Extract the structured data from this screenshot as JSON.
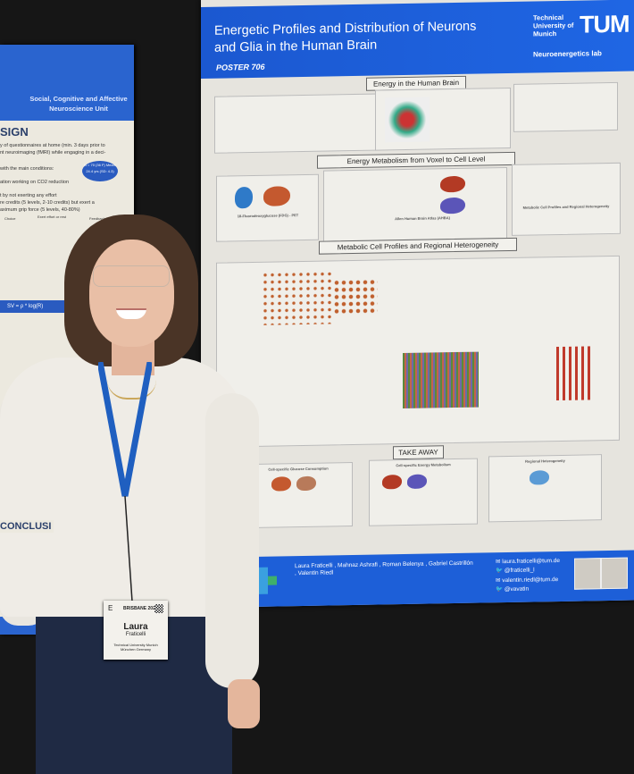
{
  "left_poster": {
    "unit": "Social, Cognitive and Affective Neuroscience Unit",
    "section": "SIGN",
    "lines": [
      "y of questionnaires at home (min. 3 days prior to",
      "nt neuroimaging (fMRI) while engaging in a deci-",
      "with the main conditions:",
      "ation working on CO2 reduction",
      "t by not exerting any effort",
      "re credits (5 levels, 2-10 credits) but exert a",
      "aximum grip force (5 levels, 40-80%)"
    ],
    "columns": [
      "Choice",
      "Exert effort or rest",
      "Feedback"
    ],
    "badge": "N = 70 (36 F) Mean: 24.4 yrs (SD: 4.3)",
    "formula": "SV = ρ * log(R)",
    "conclusion": "CONCLUSI"
  },
  "poster": {
    "title": "Energetic Profiles and Distribution of Neurons and Glia in the Human Brain",
    "number": "POSTER 706",
    "institution": "Technical University of Munich",
    "logo": "TUM",
    "lab": "Neuroenergetics lab",
    "sections": [
      "Energy in the Human Brain",
      "Energy Metabolism from Voxel to Cell Level",
      "Metabolic Cell Profiles and Regional Heterogeneity",
      "TAKE AWAY"
    ],
    "panels": {
      "fdg": "18-Fluorodeoxyglucose (FDG) - PET",
      "ahba": "Allen Human Brain Atlas (AHBA)",
      "regional": "Metabolic Cell Profiles and Regional Heterogeneity"
    },
    "takeaways": [
      {
        "title": "Cell-specific Glucose Consumption"
      },
      {
        "title": "Cell-specific Energy Metabolism"
      },
      {
        "title": "Regional Heterogeneity"
      }
    ],
    "authors": "Laura Fraticelli , Mahnaz Ashrafi , Roman Belenya , Gabriel Castrillón , Valentin Riedl",
    "contacts": [
      {
        "icon": "mail-icon",
        "text": "laura.fraticelli@tum.de"
      },
      {
        "icon": "twitter-icon",
        "text": "@fraticelli_l"
      },
      {
        "icon": "mail-icon",
        "text": "valentin.riedl@tum.de"
      },
      {
        "icon": "twitter-icon",
        "text": "@vavatin"
      }
    ]
  },
  "name_badge": {
    "letter": "E",
    "event": "BRISBANE 2023",
    "first": "Laura",
    "last": "Fraticelli",
    "org": "Technical University Munich",
    "city": "München Germany"
  },
  "colors": {
    "poster_blue": "#1d5fd8",
    "sweater": "#efece6",
    "lanyard": "#1f5fc0"
  }
}
